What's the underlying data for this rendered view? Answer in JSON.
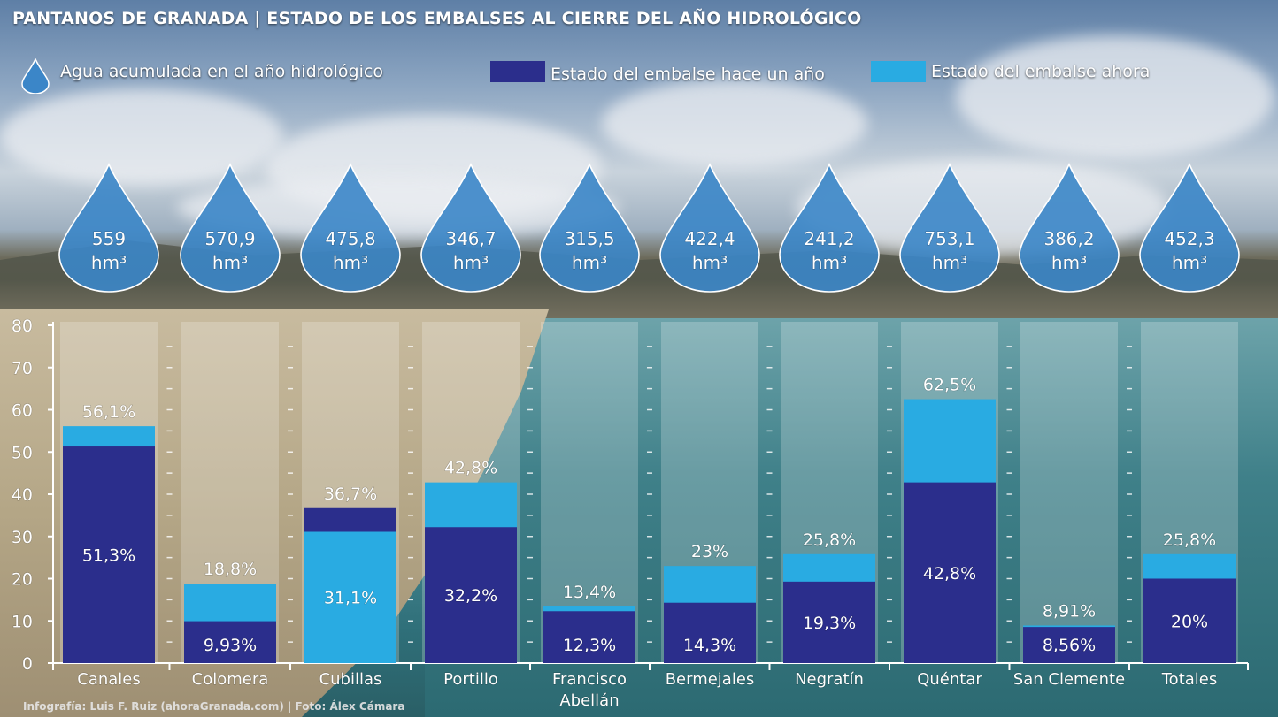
{
  "title": "PANTANOS DE GRANADA | ESTADO DE LOS EMBALSES AL CIERRE DEL AÑO HIDROLÓGICO",
  "legend": {
    "accumulated": "Agua acumulada en el año hidrológico",
    "last_year": "Estado del embalse hace un año",
    "now": "Estado del embalse ahora"
  },
  "credit": "Infografía: Luis F. Ruiz (ahoraGranada.com) | Foto: Álex Cámara",
  "colors": {
    "last_year": "#2b2e8c",
    "now": "#29abe2",
    "drop": "#3b86c8"
  },
  "chart_data": {
    "type": "bar",
    "categories": [
      "Canales",
      "Colomera",
      "Cubillas",
      "Portillo",
      "Francisco Abellán",
      "Bermejales",
      "Negratín",
      "Quéntar",
      "San Clemente",
      "Totales"
    ],
    "series": [
      {
        "name": "Estado del embalse hace un año",
        "values": [
          51.3,
          9.93,
          36.7,
          32.2,
          12.3,
          14.3,
          19.3,
          42.8,
          8.56,
          20
        ]
      },
      {
        "name": "Estado del embalse ahora",
        "values": [
          56.1,
          18.8,
          31.1,
          42.8,
          13.4,
          23,
          25.8,
          62.5,
          8.91,
          25.8
        ]
      }
    ],
    "top_labels": [
      "56,1%",
      "18,8%",
      "36,7%",
      "42,8%",
      "13,4%",
      "23%",
      "25,8%",
      "62,5%",
      "8,91%",
      "25,8%"
    ],
    "inner_labels": [
      "51,3%",
      "9,93%",
      "31,1%",
      "32,2%",
      "12,3%",
      "14,3%",
      "19,3%",
      "42,8%",
      "8,56%",
      "20%"
    ],
    "accumulated": [
      "559",
      "570,9",
      "475,8",
      "346,7",
      "315,5",
      "422,4",
      "241,2",
      "753,1",
      "386,2",
      "452,3"
    ],
    "accumulated_unit": "hm³",
    "ylim": [
      0,
      80
    ],
    "yticks": [
      "0",
      "10",
      "20",
      "30",
      "40",
      "50",
      "60",
      "70",
      "80"
    ],
    "grid": false
  }
}
